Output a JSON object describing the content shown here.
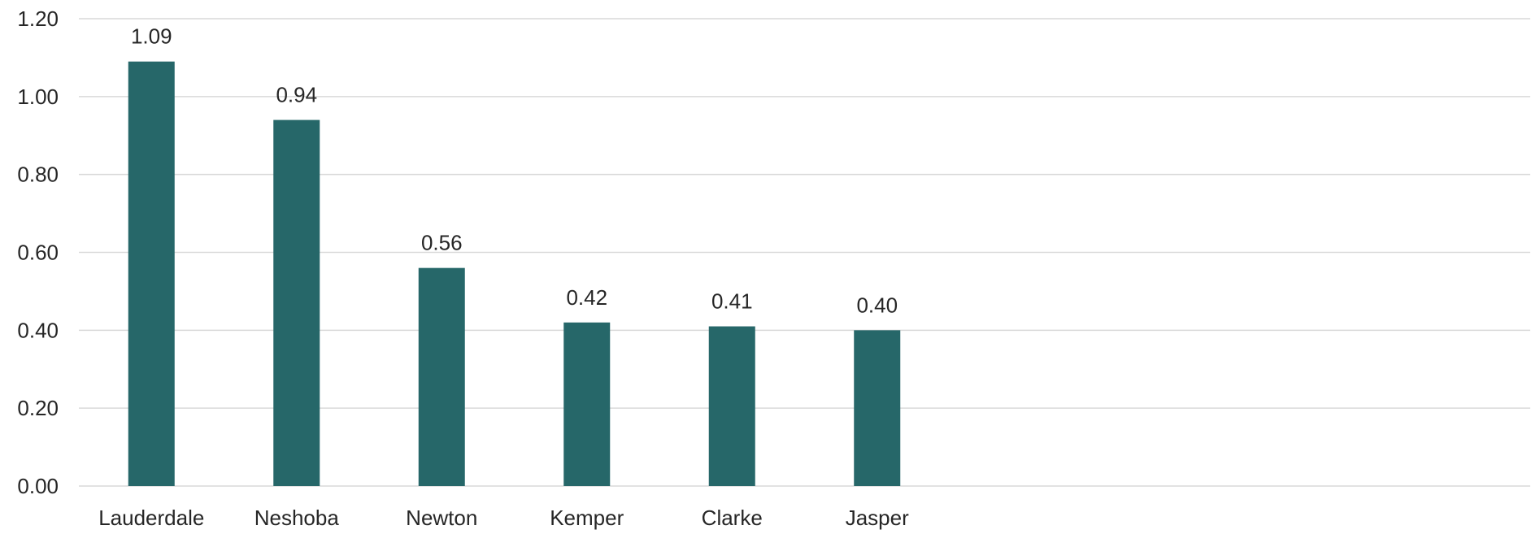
{
  "chart_data": {
    "type": "bar",
    "title": "",
    "xlabel": "",
    "ylabel": "",
    "categories": [
      "Lauderdale",
      "Neshoba",
      "Newton",
      "Kemper",
      "Clarke",
      "Jasper"
    ],
    "values": [
      1.09,
      0.94,
      0.56,
      0.42,
      0.41,
      0.4
    ],
    "data_labels": [
      "1.09",
      "0.94",
      "0.56",
      "0.42",
      "0.41",
      "0.40"
    ],
    "ylim": [
      0,
      1.2
    ],
    "y_ticks": [
      {
        "value": 0.0,
        "label": "0.00"
      },
      {
        "value": 0.2,
        "label": "0.20"
      },
      {
        "value": 0.4,
        "label": "0.40"
      },
      {
        "value": 0.6,
        "label": "0.60"
      },
      {
        "value": 0.8,
        "label": "0.80"
      },
      {
        "value": 1.0,
        "label": "1.00"
      },
      {
        "value": 1.2,
        "label": "1.20"
      }
    ],
    "grid": true,
    "legend": "none",
    "bar_color": "#266769"
  }
}
